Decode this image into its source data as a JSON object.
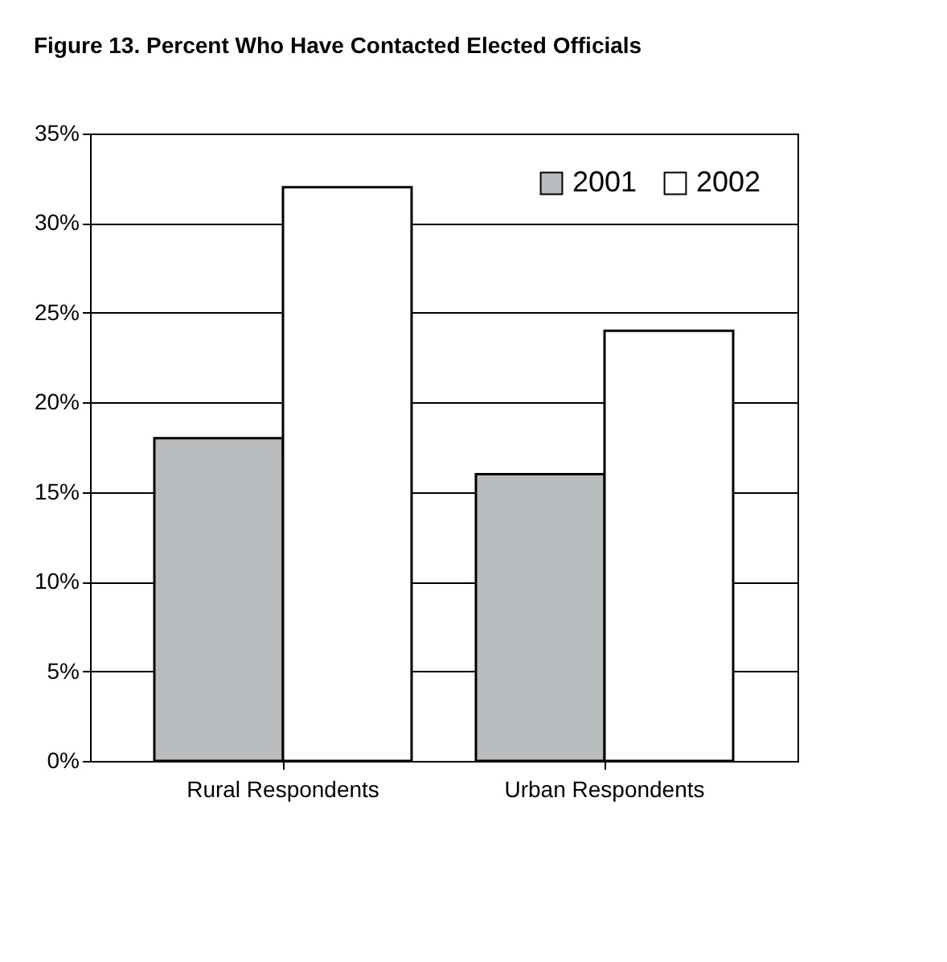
{
  "chart_data": {
    "type": "bar",
    "title": "Figure 13.   Percent Who Have Contacted Elected Officials",
    "categories": [
      "Rural Respondents",
      "Urban Respondents"
    ],
    "series": [
      {
        "name": "2001",
        "color": "#b8bcbf",
        "values": [
          18,
          16
        ]
      },
      {
        "name": "2002",
        "color": "#ffffff",
        "values": [
          32,
          24
        ]
      }
    ],
    "ylim": [
      0,
      35
    ],
    "yticks": [
      {
        "value": 0,
        "label": "0%"
      },
      {
        "value": 5,
        "label": "5%"
      },
      {
        "value": 10,
        "label": "10%"
      },
      {
        "value": 15,
        "label": "15%"
      },
      {
        "value": 20,
        "label": "20%"
      },
      {
        "value": 25,
        "label": "25%"
      },
      {
        "value": 30,
        "label": "30%"
      },
      {
        "value": 35,
        "label": "35%"
      }
    ],
    "grid": "y",
    "legend": "top right"
  }
}
